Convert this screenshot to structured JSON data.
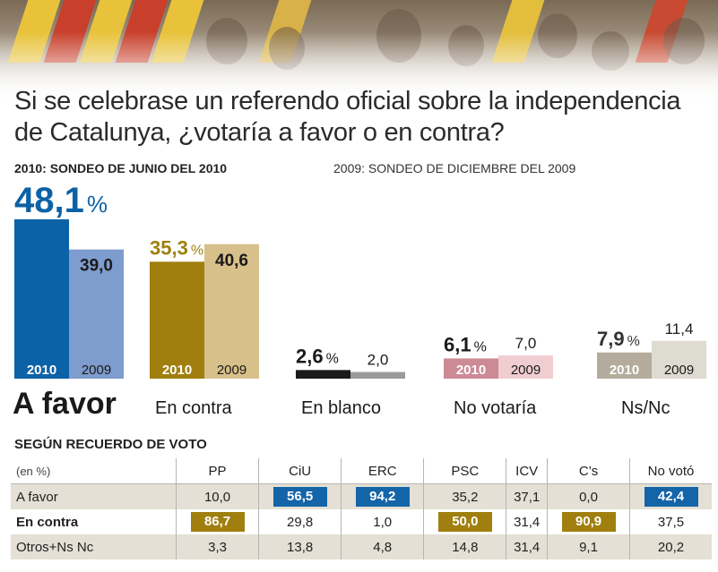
{
  "title": "Si se celebrase un referendo oficial sobre la independencia de Catalunya, ¿votaría a favor o en contra?",
  "subtitle_2010": "2010: SONDEO DE JUNIO DEL 2010",
  "subtitle_2009": "2009: SONDEO DE DICIEMBRE DEL 2009",
  "colors": {
    "favor_2010": "#0c62a6",
    "favor_2009": "#7e9ccd",
    "contra_2010": "#a07f0e",
    "contra_2009": "#d7c08a",
    "blanco_2010": "#1a1a1a",
    "blanco_2009": "#9a9a9a",
    "novotaria_2010": "#cc8a95",
    "novotaria_2009": "#f0cdd1",
    "nsnc_2010": "#b3ac9c",
    "nsnc_2009": "#dedbd0"
  },
  "chart_data": {
    "type": "bar",
    "categories": [
      "A favor",
      "En contra",
      "En blanco",
      "No votaría",
      "Ns/Nc"
    ],
    "series": [
      {
        "name": "2010",
        "values": [
          48.1,
          35.3,
          2.6,
          6.1,
          7.9
        ]
      },
      {
        "name": "2009",
        "values": [
          39.0,
          40.6,
          2.0,
          7.0,
          11.4
        ]
      }
    ],
    "value_labels_2010": [
      "48,1",
      "35,3",
      "2,6",
      "6,1",
      "7,9"
    ],
    "value_labels_2009": [
      "39,0",
      "40,6",
      "2,0",
      "7,0",
      "11,4"
    ],
    "percent_sign": "%",
    "year_labels": [
      "2010",
      "2009"
    ],
    "ylim": [
      0,
      50
    ]
  },
  "table": {
    "title": "SEGÚN RECUERDO DE VOTO",
    "unit": "(en %)",
    "columns": [
      "PP",
      "CiU",
      "ERC",
      "PSC",
      "ICV",
      "C’s",
      "No votó"
    ],
    "rows": [
      {
        "label": "A favor",
        "values": [
          "10,0",
          "56,5",
          "94,2",
          "35,2",
          "37,1",
          "0,0",
          "42,4"
        ]
      },
      {
        "label": "En contra",
        "values": [
          "86,7",
          "29,8",
          "1,0",
          "50,0",
          "31,4",
          "90,9",
          "37,5"
        ]
      },
      {
        "label": "Otros+Ns Nc",
        "values": [
          "3,3",
          "13,8",
          "4,8",
          "14,8",
          "31,4",
          "9,1",
          "20,2"
        ]
      }
    ]
  }
}
